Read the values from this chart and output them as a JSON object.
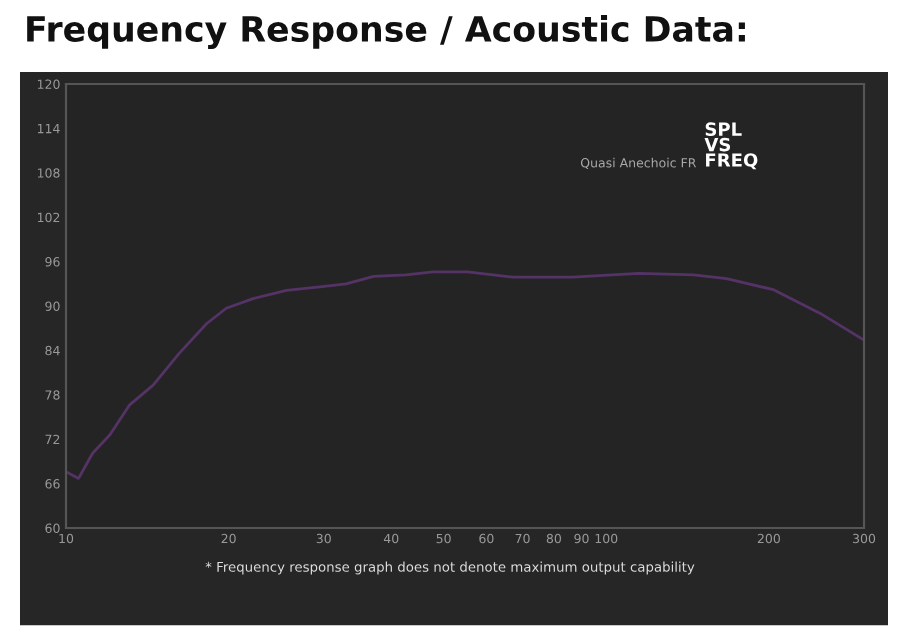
{
  "chart_data": {
    "type": "line",
    "title": "Frequency Response / Acoustic Data:",
    "annotations": [
      "Quasi Anechoic FR",
      "SPL\nVS\nFREQ",
      "* Frequency response graph does not denote maximum output capability"
    ],
    "series": [
      {
        "color": "#553366",
        "x": [
          10,
          10.55,
          11.2,
          12.06,
          13.1,
          14.5,
          16.2,
          18.2,
          19.8,
          22.2,
          25.6,
          29.5,
          33,
          37.1,
          42.6,
          47.8,
          55.4,
          67.2,
          86.7,
          115,
          145,
          167,
          204,
          249,
          300
        ],
        "values": [
          67.6,
          66.7,
          70.1,
          72.6,
          76.6,
          79.3,
          83.6,
          87.6,
          89.7,
          91.0,
          92.1,
          92.6,
          93.0,
          94.0,
          94.2,
          94.6,
          94.6,
          93.9,
          93.9,
          94.4,
          94.2,
          93.7,
          92.2,
          89.0,
          85.4
        ]
      }
    ],
    "log": "x",
    "xlim": [
      10,
      300
    ],
    "xticks": [
      10,
      20,
      30,
      40,
      50,
      60,
      70,
      80,
      90,
      100,
      200,
      300
    ],
    "ylim": [
      60,
      120
    ],
    "yticks": [
      60,
      66,
      72,
      78,
      84,
      90,
      96,
      102,
      108,
      114,
      120
    ],
    "grid": false,
    "legend": false,
    "line_style": "solid",
    "marker": "none"
  }
}
